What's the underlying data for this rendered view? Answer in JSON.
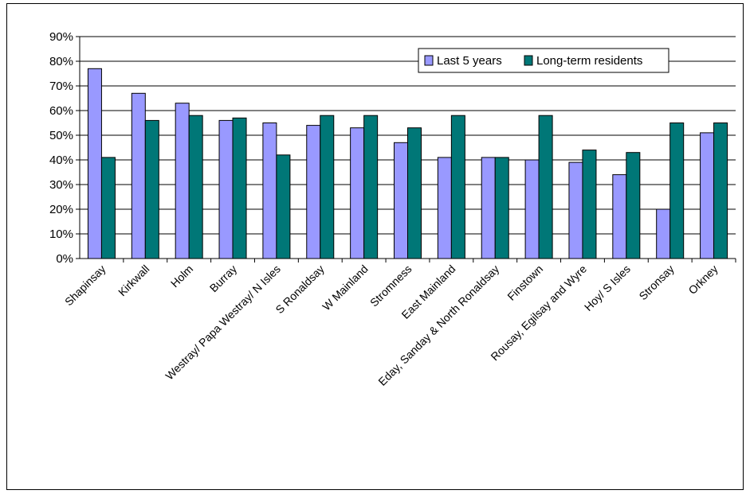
{
  "chart_data": {
    "type": "bar",
    "title": "",
    "xlabel": "",
    "ylabel": "",
    "ylim": [
      0,
      90
    ],
    "y_ticks": [
      "0%",
      "10%",
      "20%",
      "30%",
      "40%",
      "50%",
      "60%",
      "70%",
      "80%",
      "90%"
    ],
    "grid": "horizontal",
    "legend_position": "top-right",
    "categories": [
      "Shapinsay",
      "Kirkwall",
      "Holm",
      "Burray",
      "Westray/ Papa Westray/ N Isles",
      "S Ronaldsay",
      "W Mainland",
      "Stromness",
      "East Mainland",
      "Eday, Sanday & North Ronaldsay",
      "Finstown",
      "Rousay, Egilsay and Wyre",
      "Hoy/ S Isles",
      "Stronsay",
      "Orkney"
    ],
    "series": [
      {
        "name": "Last 5 years",
        "color": "#9999ff",
        "values": [
          77,
          67,
          63,
          56,
          55,
          54,
          53,
          47,
          41,
          41,
          40,
          39,
          34,
          20,
          51
        ]
      },
      {
        "name": "Long-term residents",
        "color": "#007777",
        "values": [
          41,
          56,
          58,
          57,
          42,
          58,
          58,
          53,
          58,
          41,
          58,
          44,
          43,
          55,
          55
        ]
      }
    ]
  }
}
